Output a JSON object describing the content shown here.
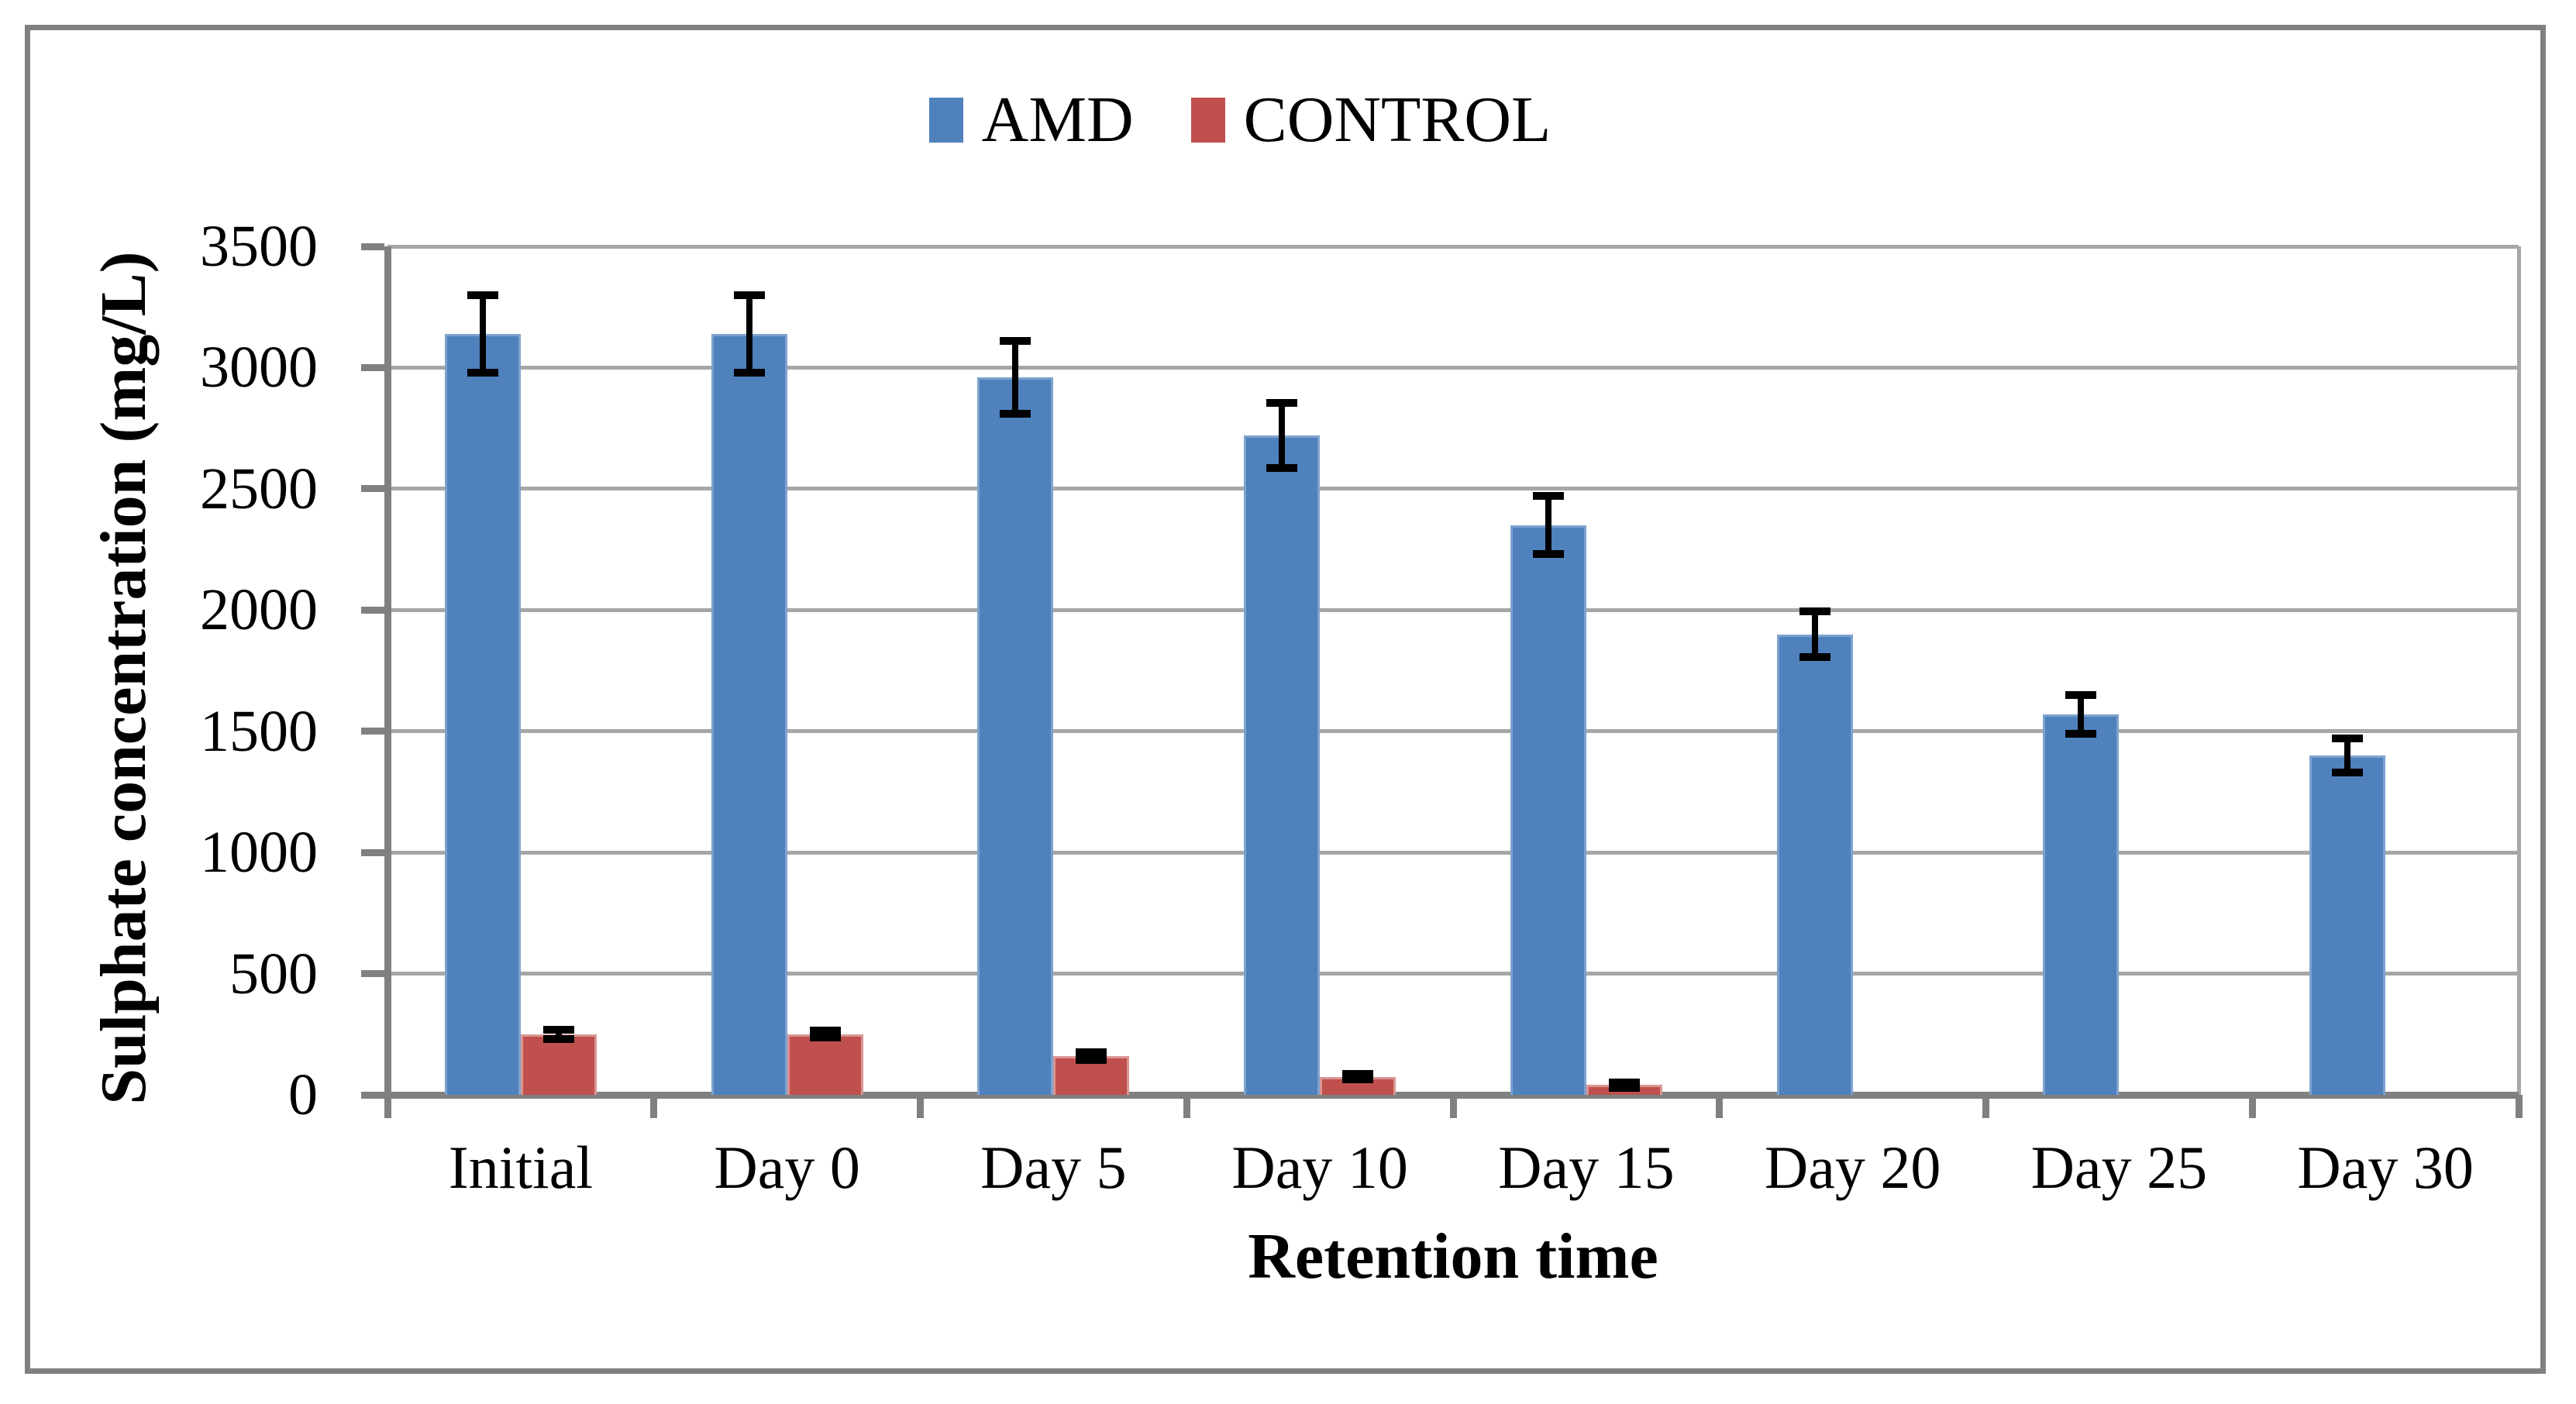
{
  "figure": {
    "background": "#ffffff",
    "frame_border_color": "#808080"
  },
  "legend": {
    "items": [
      {
        "label": "AMD",
        "color": "#4F81BD"
      },
      {
        "label": "CONTROL",
        "color": "#C0504D"
      }
    ]
  },
  "chart_data": {
    "type": "bar",
    "title": "",
    "xlabel": "Retention time",
    "ylabel": "Sulphate concentration (mg/L)",
    "categories": [
      "Initial",
      "Day 0",
      "Day 5",
      "Day 10",
      "Day 15",
      "Day 20",
      "Day 25",
      "Day 30"
    ],
    "series": [
      {
        "name": "AMD",
        "color": "#4F81BD",
        "edge_color": "#7DA2CE",
        "values": [
          3140,
          3140,
          2960,
          2720,
          2350,
          1900,
          1570,
          1400
        ],
        "errors": [
          160,
          160,
          150,
          135,
          120,
          95,
          80,
          70
        ]
      },
      {
        "name": "CONTROL",
        "color": "#C0504D",
        "edge_color": "#D99694",
        "values": [
          250,
          250,
          160,
          75,
          40,
          0,
          0,
          0
        ],
        "errors": [
          20,
          15,
          15,
          12,
          10,
          0,
          0,
          0
        ]
      }
    ],
    "ylim": [
      0,
      3500
    ],
    "ytick_step": 500,
    "yticks": [
      "0",
      "500",
      "1000",
      "1500",
      "2000",
      "2500",
      "3000",
      "3500"
    ],
    "grid": true,
    "legend_position": "top-center",
    "gridline_color": "#A6A6A6",
    "axis_color": "#808080",
    "errorbar_color": "#000000"
  }
}
